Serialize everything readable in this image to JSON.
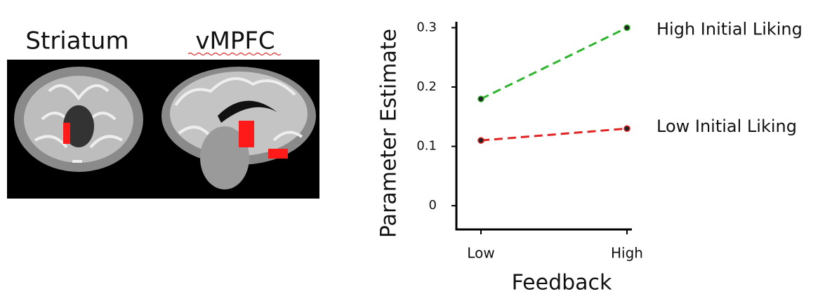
{
  "figure": {
    "brain_labels": [
      "Striatum",
      "vMPFC"
    ]
  },
  "chart_data": {
    "type": "line",
    "categories": [
      "Low",
      "High"
    ],
    "xlabel": "Feedback",
    "ylabel": "Parameter Estimate",
    "ylim": [
      -0.04,
      0.31
    ],
    "yticks": [
      0,
      0.1,
      0.2,
      0.3
    ],
    "series": [
      {
        "name": "High Initial Liking",
        "color": "#2fb52f",
        "values": [
          0.18,
          0.3
        ]
      },
      {
        "name": "Low Initial Liking",
        "color": "#e02424",
        "values": [
          0.11,
          0.13
        ]
      }
    ]
  }
}
